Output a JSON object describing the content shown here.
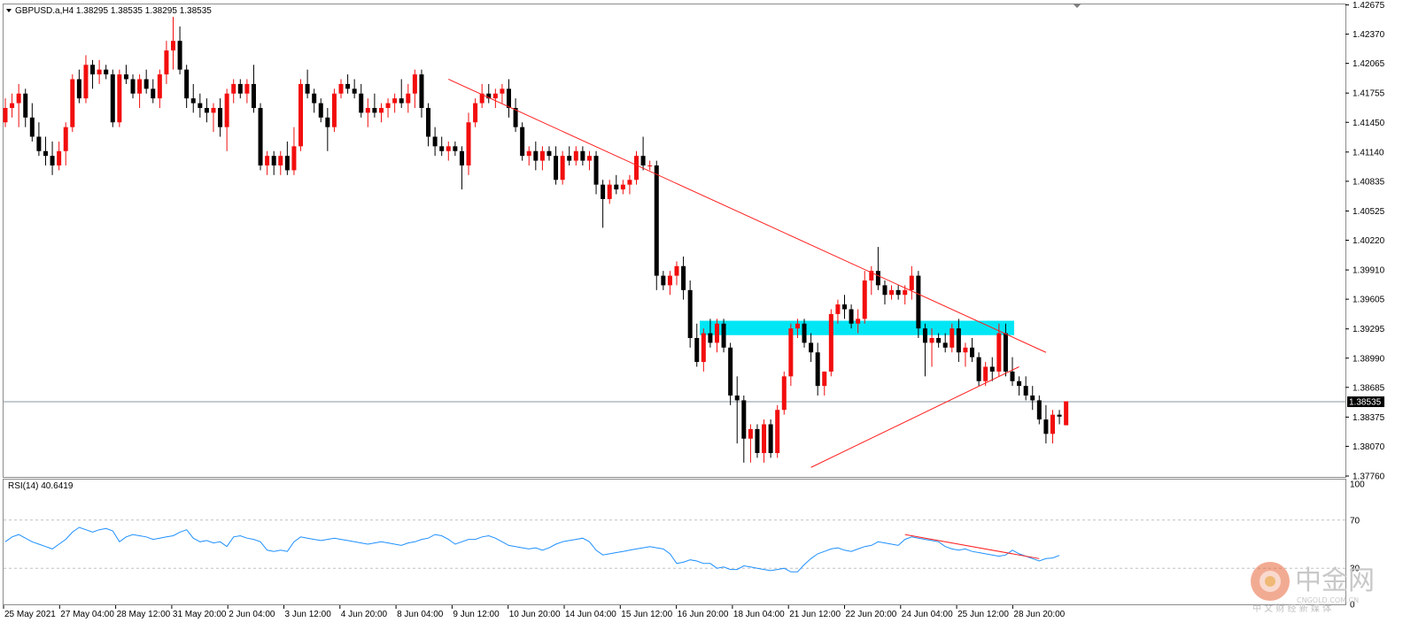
{
  "window": {
    "symbol_line": "GBPUSD.a,H4  1.38295 1.38535 1.38295 1.38535",
    "indicator_line": "RSI(14) 40.6419"
  },
  "price_axis": {
    "ticks": [
      "1.42675",
      "1.42370",
      "1.42065",
      "1.41755",
      "1.41450",
      "1.41140",
      "1.40835",
      "1.40525",
      "1.40220",
      "1.39910",
      "1.39605",
      "1.39295",
      "1.38990",
      "1.38685",
      "1.38375",
      "1.38070",
      "1.37760"
    ],
    "current_label": "1.38535"
  },
  "rsi_axis": {
    "ticks": [
      "100",
      "70",
      "30",
      "0"
    ]
  },
  "time_axis": {
    "labels": [
      "25 May 2021",
      "27 May 04:00",
      "28 May 12:00",
      "31 May 20:00",
      "2 Jun 04:00",
      "3 Jun 12:00",
      "4 Jun 20:00",
      "8 Jun 04:00",
      "9 Jun 12:00",
      "10 Jun 20:00",
      "14 Jun 04:00",
      "15 Jun 12:00",
      "16 Jun 20:00",
      "18 Jun 04:00",
      "21 Jun 12:00",
      "22 Jun 20:00",
      "24 Jun 04:00",
      "25 Jun 12:00",
      "28 Jun 20:00"
    ]
  },
  "watermark": {
    "name": "中金网",
    "site": "CNGOLD.COM.CN",
    "tagline": "中 文 财 经 新 媒 体"
  },
  "colors": {
    "bull": "#f20d0d",
    "bear": "#000000",
    "trendline": "#ff1f1f",
    "zone": "#00e6f5",
    "rsi": "#1e90ff",
    "grid": "#c0c0c0"
  },
  "chart_data": {
    "type": "candlestick",
    "symbol": "GBPUSD.a",
    "timeframe": "H4",
    "ylim": [
      1.3776,
      1.4268
    ],
    "series": [
      {
        "o": 1.4145,
        "h": 1.417,
        "l": 1.414,
        "c": 1.416
      },
      {
        "o": 1.416,
        "h": 1.4175,
        "l": 1.415,
        "c": 1.4165
      },
      {
        "o": 1.4165,
        "h": 1.4185,
        "l": 1.414,
        "c": 1.4175
      },
      {
        "o": 1.4175,
        "h": 1.418,
        "l": 1.414,
        "c": 1.415
      },
      {
        "o": 1.415,
        "h": 1.4165,
        "l": 1.4125,
        "c": 1.413
      },
      {
        "o": 1.413,
        "h": 1.4145,
        "l": 1.411,
        "c": 1.4115
      },
      {
        "o": 1.4115,
        "h": 1.413,
        "l": 1.41,
        "c": 1.411
      },
      {
        "o": 1.411,
        "h": 1.4125,
        "l": 1.409,
        "c": 1.41
      },
      {
        "o": 1.41,
        "h": 1.4125,
        "l": 1.4095,
        "c": 1.4115
      },
      {
        "o": 1.4115,
        "h": 1.4145,
        "l": 1.41,
        "c": 1.414
      },
      {
        "o": 1.414,
        "h": 1.4195,
        "l": 1.4135,
        "c": 1.419
      },
      {
        "o": 1.419,
        "h": 1.42,
        "l": 1.4165,
        "c": 1.417
      },
      {
        "o": 1.417,
        "h": 1.4215,
        "l": 1.4165,
        "c": 1.4205
      },
      {
        "o": 1.4205,
        "h": 1.421,
        "l": 1.418,
        "c": 1.4195
      },
      {
        "o": 1.4195,
        "h": 1.421,
        "l": 1.4185,
        "c": 1.42
      },
      {
        "o": 1.42,
        "h": 1.4205,
        "l": 1.419,
        "c": 1.4195
      },
      {
        "o": 1.4195,
        "h": 1.42,
        "l": 1.414,
        "c": 1.4145
      },
      {
        "o": 1.4145,
        "h": 1.42,
        "l": 1.414,
        "c": 1.4195
      },
      {
        "o": 1.4195,
        "h": 1.4205,
        "l": 1.4185,
        "c": 1.419
      },
      {
        "o": 1.419,
        "h": 1.4195,
        "l": 1.417,
        "c": 1.4175
      },
      {
        "o": 1.4175,
        "h": 1.4195,
        "l": 1.416,
        "c": 1.419
      },
      {
        "o": 1.419,
        "h": 1.42,
        "l": 1.4175,
        "c": 1.418
      },
      {
        "o": 1.418,
        "h": 1.419,
        "l": 1.4165,
        "c": 1.417
      },
      {
        "o": 1.417,
        "h": 1.42,
        "l": 1.416,
        "c": 1.4195
      },
      {
        "o": 1.4195,
        "h": 1.423,
        "l": 1.4185,
        "c": 1.422
      },
      {
        "o": 1.422,
        "h": 1.4255,
        "l": 1.42,
        "c": 1.423
      },
      {
        "o": 1.423,
        "h": 1.4245,
        "l": 1.4195,
        "c": 1.42
      },
      {
        "o": 1.42,
        "h": 1.4205,
        "l": 1.416,
        "c": 1.417
      },
      {
        "o": 1.417,
        "h": 1.4185,
        "l": 1.4155,
        "c": 1.4165
      },
      {
        "o": 1.4165,
        "h": 1.4175,
        "l": 1.415,
        "c": 1.416
      },
      {
        "o": 1.416,
        "h": 1.417,
        "l": 1.4145,
        "c": 1.4155
      },
      {
        "o": 1.4155,
        "h": 1.4165,
        "l": 1.4135,
        "c": 1.416
      },
      {
        "o": 1.416,
        "h": 1.417,
        "l": 1.413,
        "c": 1.414
      },
      {
        "o": 1.414,
        "h": 1.418,
        "l": 1.4115,
        "c": 1.4175
      },
      {
        "o": 1.4175,
        "h": 1.419,
        "l": 1.4165,
        "c": 1.4185
      },
      {
        "o": 1.4185,
        "h": 1.419,
        "l": 1.417,
        "c": 1.4175
      },
      {
        "o": 1.4175,
        "h": 1.419,
        "l": 1.4165,
        "c": 1.4185
      },
      {
        "o": 1.4185,
        "h": 1.4205,
        "l": 1.4155,
        "c": 1.416
      },
      {
        "o": 1.416,
        "h": 1.4165,
        "l": 1.4095,
        "c": 1.41
      },
      {
        "o": 1.41,
        "h": 1.4115,
        "l": 1.409,
        "c": 1.411
      },
      {
        "o": 1.411,
        "h": 1.4115,
        "l": 1.409,
        "c": 1.41
      },
      {
        "o": 1.41,
        "h": 1.4115,
        "l": 1.409,
        "c": 1.411
      },
      {
        "o": 1.411,
        "h": 1.4125,
        "l": 1.409,
        "c": 1.4095
      },
      {
        "o": 1.4095,
        "h": 1.414,
        "l": 1.409,
        "c": 1.412
      },
      {
        "o": 1.412,
        "h": 1.419,
        "l": 1.4115,
        "c": 1.4185
      },
      {
        "o": 1.4185,
        "h": 1.42,
        "l": 1.417,
        "c": 1.4175
      },
      {
        "o": 1.4175,
        "h": 1.418,
        "l": 1.4155,
        "c": 1.4165
      },
      {
        "o": 1.4165,
        "h": 1.417,
        "l": 1.4145,
        "c": 1.415
      },
      {
        "o": 1.415,
        "h": 1.416,
        "l": 1.4115,
        "c": 1.414
      },
      {
        "o": 1.414,
        "h": 1.418,
        "l": 1.4135,
        "c": 1.4175
      },
      {
        "o": 1.4175,
        "h": 1.419,
        "l": 1.417,
        "c": 1.4185
      },
      {
        "o": 1.4185,
        "h": 1.4195,
        "l": 1.4175,
        "c": 1.418
      },
      {
        "o": 1.418,
        "h": 1.419,
        "l": 1.417,
        "c": 1.4175
      },
      {
        "o": 1.4175,
        "h": 1.4185,
        "l": 1.415,
        "c": 1.4155
      },
      {
        "o": 1.4155,
        "h": 1.417,
        "l": 1.414,
        "c": 1.416
      },
      {
        "o": 1.416,
        "h": 1.4175,
        "l": 1.415,
        "c": 1.4155
      },
      {
        "o": 1.4155,
        "h": 1.4165,
        "l": 1.4145,
        "c": 1.416
      },
      {
        "o": 1.416,
        "h": 1.417,
        "l": 1.415,
        "c": 1.4165
      },
      {
        "o": 1.4165,
        "h": 1.4175,
        "l": 1.4155,
        "c": 1.417
      },
      {
        "o": 1.417,
        "h": 1.419,
        "l": 1.416,
        "c": 1.4165
      },
      {
        "o": 1.4165,
        "h": 1.4185,
        "l": 1.4155,
        "c": 1.4175
      },
      {
        "o": 1.4175,
        "h": 1.42,
        "l": 1.416,
        "c": 1.4195
      },
      {
        "o": 1.4195,
        "h": 1.42,
        "l": 1.415,
        "c": 1.416
      },
      {
        "o": 1.416,
        "h": 1.4165,
        "l": 1.412,
        "c": 1.413
      },
      {
        "o": 1.413,
        "h": 1.414,
        "l": 1.411,
        "c": 1.412
      },
      {
        "o": 1.412,
        "h": 1.413,
        "l": 1.411,
        "c": 1.4115
      },
      {
        "o": 1.4115,
        "h": 1.4125,
        "l": 1.4105,
        "c": 1.412
      },
      {
        "o": 1.412,
        "h": 1.4125,
        "l": 1.411,
        "c": 1.4115
      },
      {
        "o": 1.4115,
        "h": 1.412,
        "l": 1.4075,
        "c": 1.41
      },
      {
        "o": 1.41,
        "h": 1.4155,
        "l": 1.409,
        "c": 1.4145
      },
      {
        "o": 1.4145,
        "h": 1.417,
        "l": 1.414,
        "c": 1.4165
      },
      {
        "o": 1.4165,
        "h": 1.4185,
        "l": 1.416,
        "c": 1.4175
      },
      {
        "o": 1.4175,
        "h": 1.4185,
        "l": 1.4165,
        "c": 1.417
      },
      {
        "o": 1.417,
        "h": 1.418,
        "l": 1.416,
        "c": 1.4175
      },
      {
        "o": 1.4175,
        "h": 1.4185,
        "l": 1.4165,
        "c": 1.418
      },
      {
        "o": 1.418,
        "h": 1.419,
        "l": 1.415,
        "c": 1.416
      },
      {
        "o": 1.416,
        "h": 1.417,
        "l": 1.4135,
        "c": 1.414
      },
      {
        "o": 1.414,
        "h": 1.4145,
        "l": 1.4105,
        "c": 1.411
      },
      {
        "o": 1.411,
        "h": 1.412,
        "l": 1.41,
        "c": 1.4115
      },
      {
        "o": 1.4115,
        "h": 1.4125,
        "l": 1.4095,
        "c": 1.4105
      },
      {
        "o": 1.4105,
        "h": 1.412,
        "l": 1.4095,
        "c": 1.4115
      },
      {
        "o": 1.4115,
        "h": 1.412,
        "l": 1.4105,
        "c": 1.411
      },
      {
        "o": 1.411,
        "h": 1.412,
        "l": 1.408,
        "c": 1.4085
      },
      {
        "o": 1.4085,
        "h": 1.4115,
        "l": 1.408,
        "c": 1.411
      },
      {
        "o": 1.411,
        "h": 1.412,
        "l": 1.41,
        "c": 1.4105
      },
      {
        "o": 1.4105,
        "h": 1.412,
        "l": 1.41,
        "c": 1.4115
      },
      {
        "o": 1.4115,
        "h": 1.412,
        "l": 1.41,
        "c": 1.4105
      },
      {
        "o": 1.4105,
        "h": 1.4115,
        "l": 1.4095,
        "c": 1.411
      },
      {
        "o": 1.411,
        "h": 1.4115,
        "l": 1.407,
        "c": 1.408
      },
      {
        "o": 1.408,
        "h": 1.4085,
        "l": 1.4035,
        "c": 1.4065
      },
      {
        "o": 1.4065,
        "h": 1.4085,
        "l": 1.406,
        "c": 1.408
      },
      {
        "o": 1.408,
        "h": 1.409,
        "l": 1.407,
        "c": 1.4075
      },
      {
        "o": 1.4075,
        "h": 1.4085,
        "l": 1.407,
        "c": 1.408
      },
      {
        "o": 1.408,
        "h": 1.409,
        "l": 1.407,
        "c": 1.4085
      },
      {
        "o": 1.4085,
        "h": 1.4115,
        "l": 1.408,
        "c": 1.411
      },
      {
        "o": 1.411,
        "h": 1.413,
        "l": 1.4095,
        "c": 1.41
      },
      {
        "o": 1.41,
        "h": 1.4105,
        "l": 1.4095,
        "c": 1.41
      },
      {
        "o": 1.41,
        "h": 1.4105,
        "l": 1.397,
        "c": 1.3985
      },
      {
        "o": 1.3985,
        "h": 1.399,
        "l": 1.397,
        "c": 1.3975
      },
      {
        "o": 1.3975,
        "h": 1.399,
        "l": 1.3965,
        "c": 1.3985
      },
      {
        "o": 1.3985,
        "h": 1.4,
        "l": 1.3975,
        "c": 1.3995
      },
      {
        "o": 1.3995,
        "h": 1.4005,
        "l": 1.396,
        "c": 1.397
      },
      {
        "o": 1.397,
        "h": 1.398,
        "l": 1.391,
        "c": 1.392
      },
      {
        "o": 1.392,
        "h": 1.3935,
        "l": 1.389,
        "c": 1.3895
      },
      {
        "o": 1.3895,
        "h": 1.393,
        "l": 1.3885,
        "c": 1.3925
      },
      {
        "o": 1.3925,
        "h": 1.394,
        "l": 1.391,
        "c": 1.3915
      },
      {
        "o": 1.3915,
        "h": 1.394,
        "l": 1.3905,
        "c": 1.3935
      },
      {
        "o": 1.3935,
        "h": 1.394,
        "l": 1.3905,
        "c": 1.391
      },
      {
        "o": 1.391,
        "h": 1.3915,
        "l": 1.385,
        "c": 1.386
      },
      {
        "o": 1.386,
        "h": 1.388,
        "l": 1.381,
        "c": 1.3855
      },
      {
        "o": 1.3855,
        "h": 1.386,
        "l": 1.379,
        "c": 1.3815
      },
      {
        "o": 1.3815,
        "h": 1.383,
        "l": 1.379,
        "c": 1.3825
      },
      {
        "o": 1.3825,
        "h": 1.383,
        "l": 1.3795,
        "c": 1.38
      },
      {
        "o": 1.38,
        "h": 1.3835,
        "l": 1.379,
        "c": 1.383
      },
      {
        "o": 1.383,
        "h": 1.3835,
        "l": 1.3795,
        "c": 1.38
      },
      {
        "o": 1.38,
        "h": 1.385,
        "l": 1.3795,
        "c": 1.3845
      },
      {
        "o": 1.3845,
        "h": 1.3885,
        "l": 1.384,
        "c": 1.388
      },
      {
        "o": 1.388,
        "h": 1.3935,
        "l": 1.387,
        "c": 1.393
      },
      {
        "o": 1.393,
        "h": 1.394,
        "l": 1.392,
        "c": 1.3935
      },
      {
        "o": 1.3935,
        "h": 1.394,
        "l": 1.391,
        "c": 1.3915
      },
      {
        "o": 1.3915,
        "h": 1.3925,
        "l": 1.3895,
        "c": 1.3905
      },
      {
        "o": 1.3905,
        "h": 1.3915,
        "l": 1.386,
        "c": 1.387
      },
      {
        "o": 1.387,
        "h": 1.3885,
        "l": 1.386,
        "c": 1.3885
      },
      {
        "o": 1.3885,
        "h": 1.395,
        "l": 1.388,
        "c": 1.3945
      },
      {
        "o": 1.3945,
        "h": 1.396,
        "l": 1.3935,
        "c": 1.3955
      },
      {
        "o": 1.3955,
        "h": 1.3965,
        "l": 1.394,
        "c": 1.395
      },
      {
        "o": 1.395,
        "h": 1.3955,
        "l": 1.393,
        "c": 1.3935
      },
      {
        "o": 1.3935,
        "h": 1.395,
        "l": 1.3925,
        "c": 1.394
      },
      {
        "o": 1.394,
        "h": 1.399,
        "l": 1.3935,
        "c": 1.398
      },
      {
        "o": 1.398,
        "h": 1.3995,
        "l": 1.3965,
        "c": 1.399
      },
      {
        "o": 1.399,
        "h": 1.4015,
        "l": 1.397,
        "c": 1.3975
      },
      {
        "o": 1.3975,
        "h": 1.398,
        "l": 1.3955,
        "c": 1.3965
      },
      {
        "o": 1.3965,
        "h": 1.3975,
        "l": 1.396,
        "c": 1.397
      },
      {
        "o": 1.397,
        "h": 1.3975,
        "l": 1.396,
        "c": 1.3965
      },
      {
        "o": 1.3965,
        "h": 1.3975,
        "l": 1.3955,
        "c": 1.397
      },
      {
        "o": 1.397,
        "h": 1.3995,
        "l": 1.396,
        "c": 1.3985
      },
      {
        "o": 1.3985,
        "h": 1.399,
        "l": 1.392,
        "c": 1.393
      },
      {
        "o": 1.393,
        "h": 1.3935,
        "l": 1.388,
        "c": 1.3915
      },
      {
        "o": 1.3915,
        "h": 1.393,
        "l": 1.389,
        "c": 1.392
      },
      {
        "o": 1.392,
        "h": 1.3925,
        "l": 1.391,
        "c": 1.3915
      },
      {
        "o": 1.3915,
        "h": 1.3925,
        "l": 1.3905,
        "c": 1.391
      },
      {
        "o": 1.391,
        "h": 1.3935,
        "l": 1.3905,
        "c": 1.393
      },
      {
        "o": 1.393,
        "h": 1.394,
        "l": 1.3895,
        "c": 1.3905
      },
      {
        "o": 1.3905,
        "h": 1.3915,
        "l": 1.389,
        "c": 1.391
      },
      {
        "o": 1.391,
        "h": 1.392,
        "l": 1.3895,
        "c": 1.39
      },
      {
        "o": 1.39,
        "h": 1.3905,
        "l": 1.387,
        "c": 1.3875
      },
      {
        "o": 1.3875,
        "h": 1.3895,
        "l": 1.387,
        "c": 1.389
      },
      {
        "o": 1.389,
        "h": 1.39,
        "l": 1.3875,
        "c": 1.3885
      },
      {
        "o": 1.3885,
        "h": 1.3935,
        "l": 1.388,
        "c": 1.3925
      },
      {
        "o": 1.3925,
        "h": 1.3935,
        "l": 1.388,
        "c": 1.3885
      },
      {
        "o": 1.3885,
        "h": 1.39,
        "l": 1.387,
        "c": 1.3875
      },
      {
        "o": 1.3875,
        "h": 1.388,
        "l": 1.386,
        "c": 1.387
      },
      {
        "o": 1.387,
        "h": 1.388,
        "l": 1.3855,
        "c": 1.386
      },
      {
        "o": 1.386,
        "h": 1.387,
        "l": 1.3845,
        "c": 1.3855
      },
      {
        "o": 1.3855,
        "h": 1.386,
        "l": 1.383,
        "c": 1.3835
      },
      {
        "o": 1.3835,
        "h": 1.385,
        "l": 1.381,
        "c": 1.382
      },
      {
        "o": 1.382,
        "h": 1.3845,
        "l": 1.381,
        "c": 1.384
      },
      {
        "o": 1.384,
        "h": 1.3845,
        "l": 1.383,
        "c": 1.3838
      },
      {
        "o": 1.3829,
        "h": 1.3854,
        "l": 1.3829,
        "c": 1.3854
      }
    ],
    "current_price": 1.38535,
    "zone": {
      "low": 1.3923,
      "high": 1.3938
    },
    "trendlines": [
      {
        "from": {
          "bar": 66,
          "price": 1.419
        },
        "to": {
          "bar": 155,
          "price": 1.3905
        }
      },
      {
        "from": {
          "bar": 120,
          "price": 1.3785
        },
        "to": {
          "bar": 151,
          "price": 1.389
        }
      }
    ],
    "rsi": {
      "period": 14,
      "value": 40.6419,
      "ylim": [
        0,
        100
      ],
      "levels": [
        70,
        30
      ],
      "values": [
        52,
        56,
        58,
        55,
        52,
        50,
        48,
        46,
        50,
        54,
        60,
        64,
        62,
        60,
        62,
        63,
        61,
        52,
        56,
        58,
        57,
        56,
        54,
        55,
        56,
        57,
        60,
        62,
        55,
        52,
        53,
        51,
        52,
        48,
        56,
        57,
        55,
        54,
        52,
        45,
        44,
        45,
        44,
        52,
        56,
        55,
        54,
        53,
        54,
        55,
        54,
        53,
        52,
        51,
        50,
        51,
        52,
        51,
        50,
        49,
        51,
        52,
        54,
        55,
        58,
        57,
        54,
        50,
        52,
        54,
        54,
        56,
        57,
        55,
        52,
        49,
        48,
        47,
        46,
        47,
        45,
        47,
        50,
        52,
        53,
        54,
        55,
        52,
        45,
        41,
        42,
        43,
        44,
        45,
        46,
        47,
        48,
        47,
        46,
        42,
        34,
        35,
        37,
        36,
        34,
        34,
        30,
        31,
        29,
        29,
        32,
        31,
        30,
        29,
        28,
        29,
        30,
        27,
        27,
        33,
        38,
        42,
        44,
        46,
        47,
        45,
        44,
        46,
        48,
        49,
        52,
        51,
        50,
        49,
        54,
        56,
        55,
        54,
        53,
        52,
        48,
        46,
        45,
        46,
        44,
        43,
        42,
        41,
        40,
        41,
        45,
        42,
        40,
        38,
        36,
        38,
        38.5,
        40.6419
      ]
    },
    "divergence_line": {
      "from": {
        "bar": 134,
        "rsi": 58
      },
      "to": {
        "bar": 154,
        "rsi": 38
      }
    }
  }
}
